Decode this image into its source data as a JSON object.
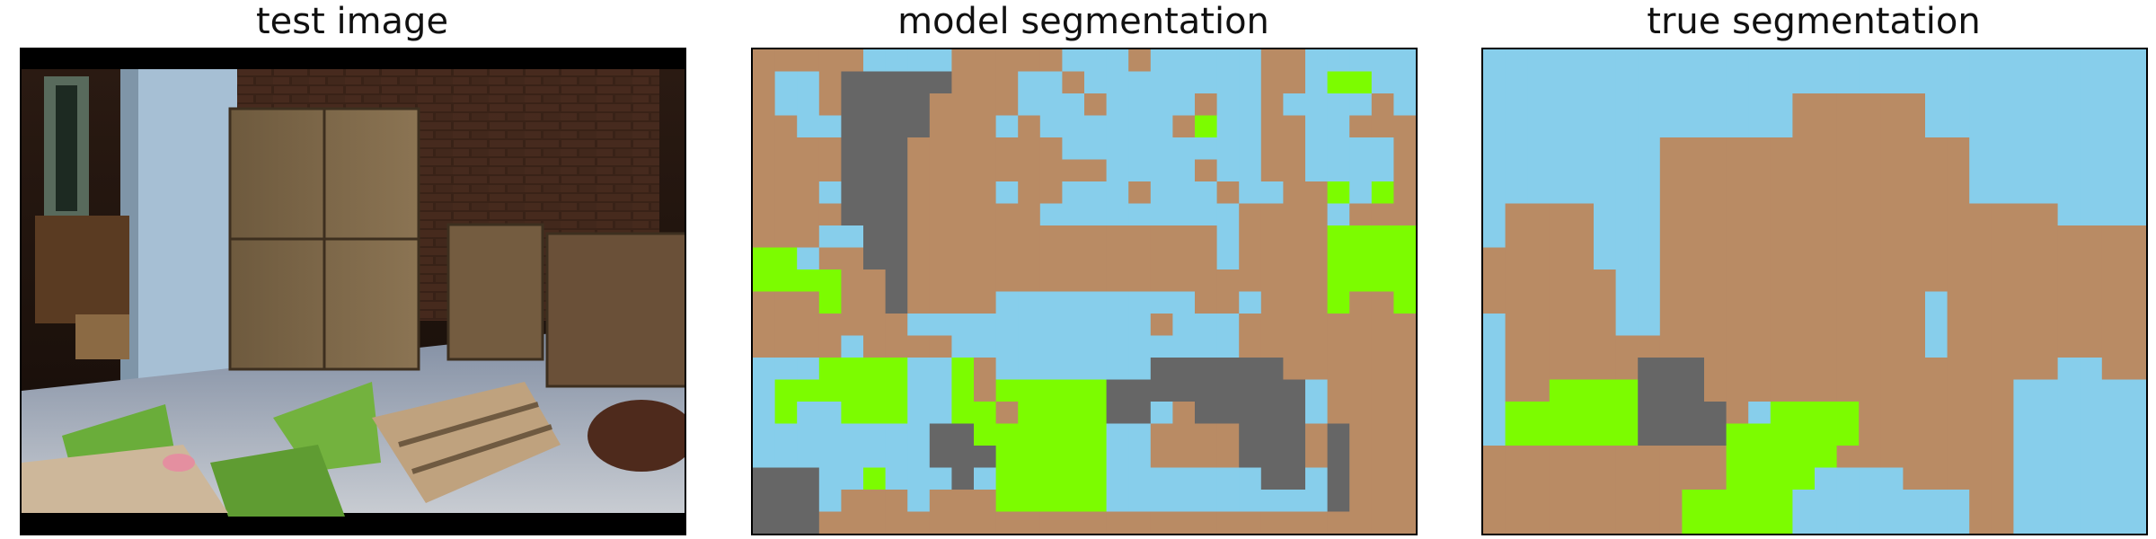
{
  "panels": [
    {
      "title": "test image"
    },
    {
      "title": "model segmentation"
    },
    {
      "title": "true segmentation"
    }
  ],
  "legend_colors": {
    "wall_sky": "#87ceeb",
    "wood": "#b98b64",
    "metal": "#666666",
    "grass": "#7cfc00"
  }
}
